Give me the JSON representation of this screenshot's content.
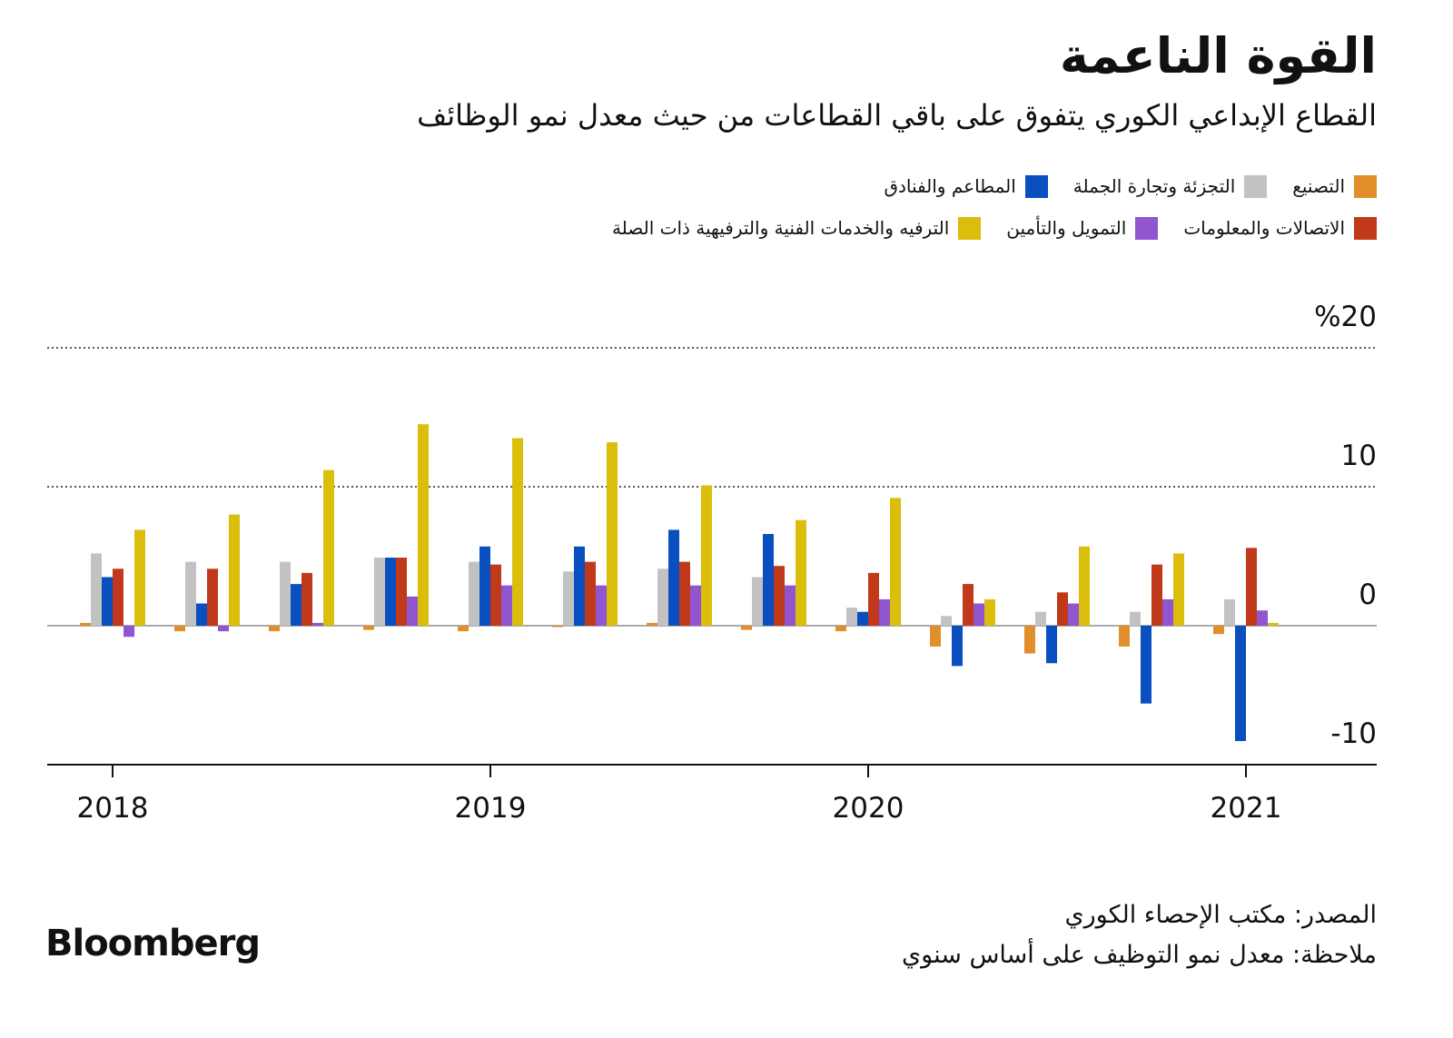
{
  "chart_data": {
    "type": "bar",
    "title": "القوة الناعمة",
    "subtitle": "القطاع الإبداعي الكوري يتفوق على باقي القطاعات من حيث معدل نمو الوظائف",
    "categories": [
      "2018",
      null,
      null,
      null,
      "2019",
      null,
      null,
      null,
      "2020",
      null,
      null,
      null,
      "2021"
    ],
    "series": [
      {
        "name": "التصنيع",
        "color": "#e08f2a",
        "values": [
          0.2,
          -0.4,
          -0.4,
          -0.3,
          -0.4,
          -0.1,
          0.2,
          -0.3,
          -0.4,
          -1.5,
          -2.0,
          -1.5,
          -0.6
        ]
      },
      {
        "name": "التجزئة وتجارة الجملة",
        "color": "#c2c2c2",
        "values": [
          5.2,
          4.6,
          4.6,
          4.9,
          4.6,
          3.9,
          4.1,
          3.5,
          1.3,
          0.7,
          1.0,
          1.0,
          1.9
        ]
      },
      {
        "name": "المطاعم والفنادق",
        "color": "#0a4fbf",
        "values": [
          3.5,
          1.6,
          3.0,
          4.9,
          5.7,
          5.7,
          6.9,
          6.6,
          1.0,
          -2.9,
          -2.7,
          -5.6,
          -8.3
        ]
      },
      {
        "name": "الاتصالات والمعلومات",
        "color": "#c0391b",
        "values": [
          4.1,
          4.1,
          3.8,
          4.9,
          4.4,
          4.6,
          4.6,
          4.3,
          3.8,
          3.0,
          2.4,
          4.4,
          5.6
        ]
      },
      {
        "name": "التمويل والتأمين",
        "color": "#9155d0",
        "values": [
          -0.8,
          -0.4,
          0.2,
          2.1,
          2.9,
          2.9,
          2.9,
          2.9,
          1.9,
          1.6,
          1.6,
          1.9,
          1.1
        ]
      },
      {
        "name": "الترفيه والخدمات الفنية والترفيهية ذات الصلة",
        "color": "#dbbe0b",
        "values": [
          6.9,
          8.0,
          11.2,
          14.5,
          13.5,
          13.2,
          10.1,
          7.6,
          9.2,
          1.9,
          5.7,
          5.2,
          0.2
        ]
      }
    ],
    "ylim": [
      -10,
      20
    ],
    "yticks": [
      -10,
      0,
      10,
      {
        "value": 20,
        "label": "%20"
      }
    ],
    "grid": true,
    "source": "المصدر: مكتب الإحصاء الكوري",
    "note": "ملاحظة: معدل نمو التوظيف على أساس سنوي",
    "logo": "Bloomberg"
  }
}
